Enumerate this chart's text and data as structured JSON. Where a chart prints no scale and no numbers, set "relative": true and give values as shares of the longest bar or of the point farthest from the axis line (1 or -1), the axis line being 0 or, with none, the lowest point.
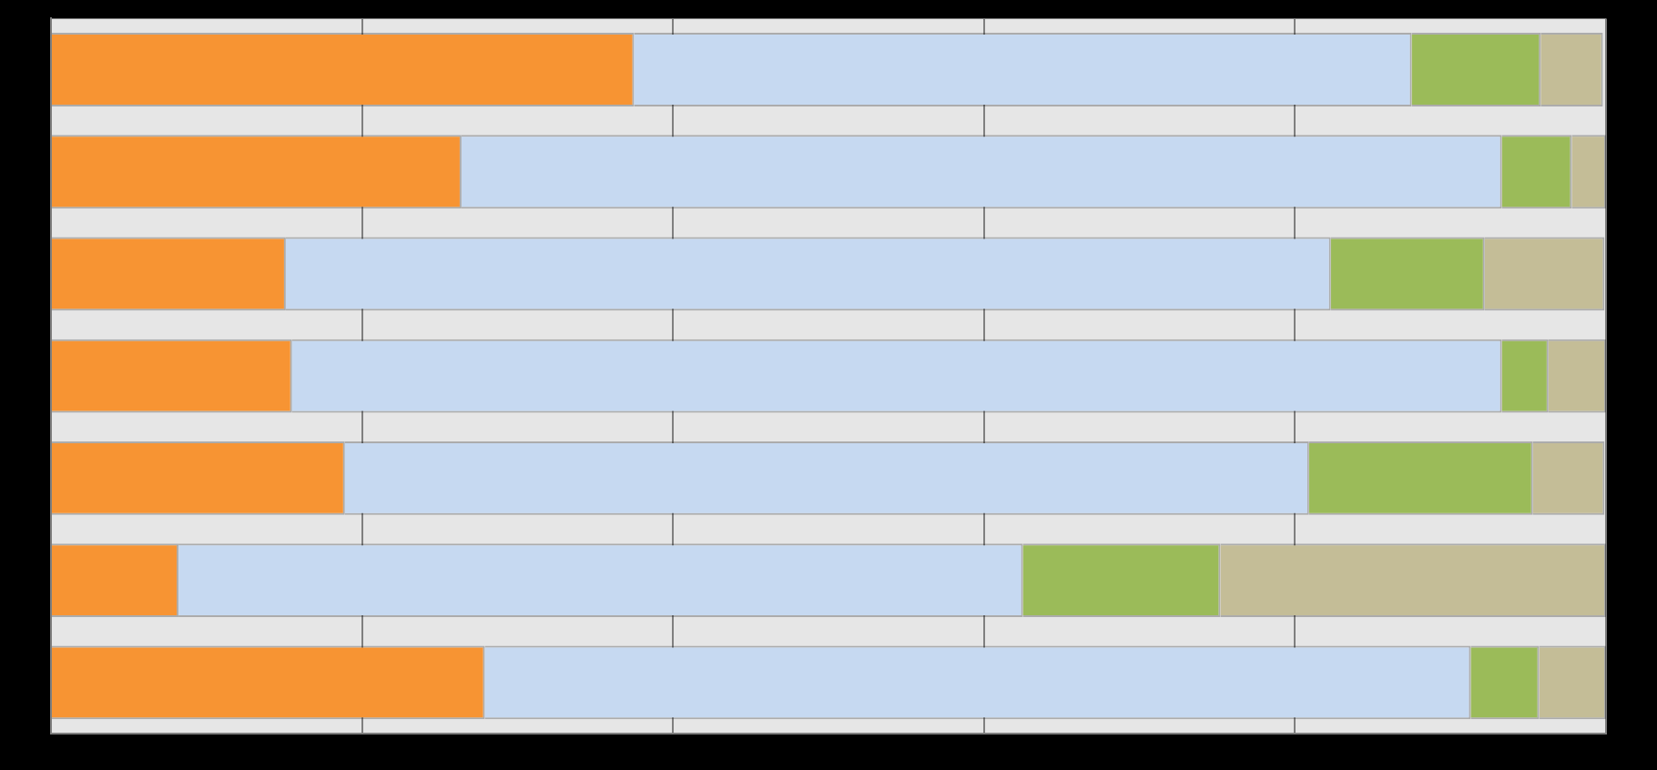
{
  "chart_data": {
    "type": "bar",
    "orientation": "horizontal",
    "stacked": true,
    "relative": true,
    "grid": "x",
    "legend": false,
    "categories": [
      null,
      null,
      null,
      null,
      null,
      null,
      null
    ],
    "series": [
      {
        "color": "#f79433",
        "values": [
          0.375,
          0.264,
          0.151,
          0.155,
          0.189,
          0.082,
          0.279
        ]
      },
      {
        "color": "#c6d9f1",
        "values": [
          0.5,
          0.669,
          0.672,
          0.778,
          0.62,
          0.543,
          0.634
        ]
      },
      {
        "color": "#9bbb59",
        "values": [
          0.083,
          0.045,
          0.099,
          0.03,
          0.144,
          0.127,
          0.044
        ]
      },
      {
        "color": "#c4bd97",
        "values": [
          0.04,
          0.022,
          0.077,
          0.037,
          0.046,
          0.248,
          0.043
        ]
      }
    ]
  }
}
